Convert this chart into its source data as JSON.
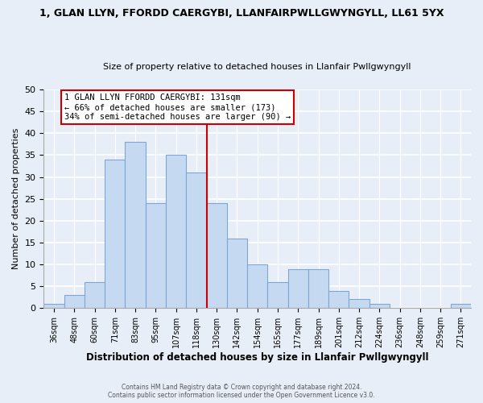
{
  "title1": "1, GLAN LLYN, FFORDD CAERGYBI, LLANFAIRPWLLGWYNGYLL, LL61 5YX",
  "title2": "Size of property relative to detached houses in Llanfair Pwllgwyngyll",
  "xlabel": "Distribution of detached houses by size in Llanfair Pwllgwyngyll",
  "ylabel": "Number of detached properties",
  "footer1": "Contains HM Land Registry data © Crown copyright and database right 2024.",
  "footer2": "Contains public sector information licensed under the Open Government Licence v3.0.",
  "bin_labels": [
    "36sqm",
    "48sqm",
    "60sqm",
    "71sqm",
    "83sqm",
    "95sqm",
    "107sqm",
    "118sqm",
    "130sqm",
    "142sqm",
    "154sqm",
    "165sqm",
    "177sqm",
    "189sqm",
    "201sqm",
    "212sqm",
    "224sqm",
    "236sqm",
    "248sqm",
    "259sqm",
    "271sqm"
  ],
  "bar_heights": [
    1,
    3,
    6,
    34,
    38,
    24,
    35,
    31,
    24,
    16,
    10,
    6,
    9,
    9,
    4,
    2,
    1,
    0,
    0,
    0,
    1
  ],
  "bar_color": "#c5d9f1",
  "bar_edge_color": "#7da6d4",
  "vline_color": "#cc0000",
  "annotation_title": "1 GLAN LLYN FFORDD CAERGYBI: 131sqm",
  "annotation_line1": "← 66% of detached houses are smaller (173)",
  "annotation_line2": "34% of semi-detached houses are larger (90) →",
  "annotation_box_edge": "#cc0000",
  "ylim": [
    0,
    50
  ],
  "yticks": [
    0,
    5,
    10,
    15,
    20,
    25,
    30,
    35,
    40,
    45,
    50
  ],
  "bg_color": "#e8eef8"
}
